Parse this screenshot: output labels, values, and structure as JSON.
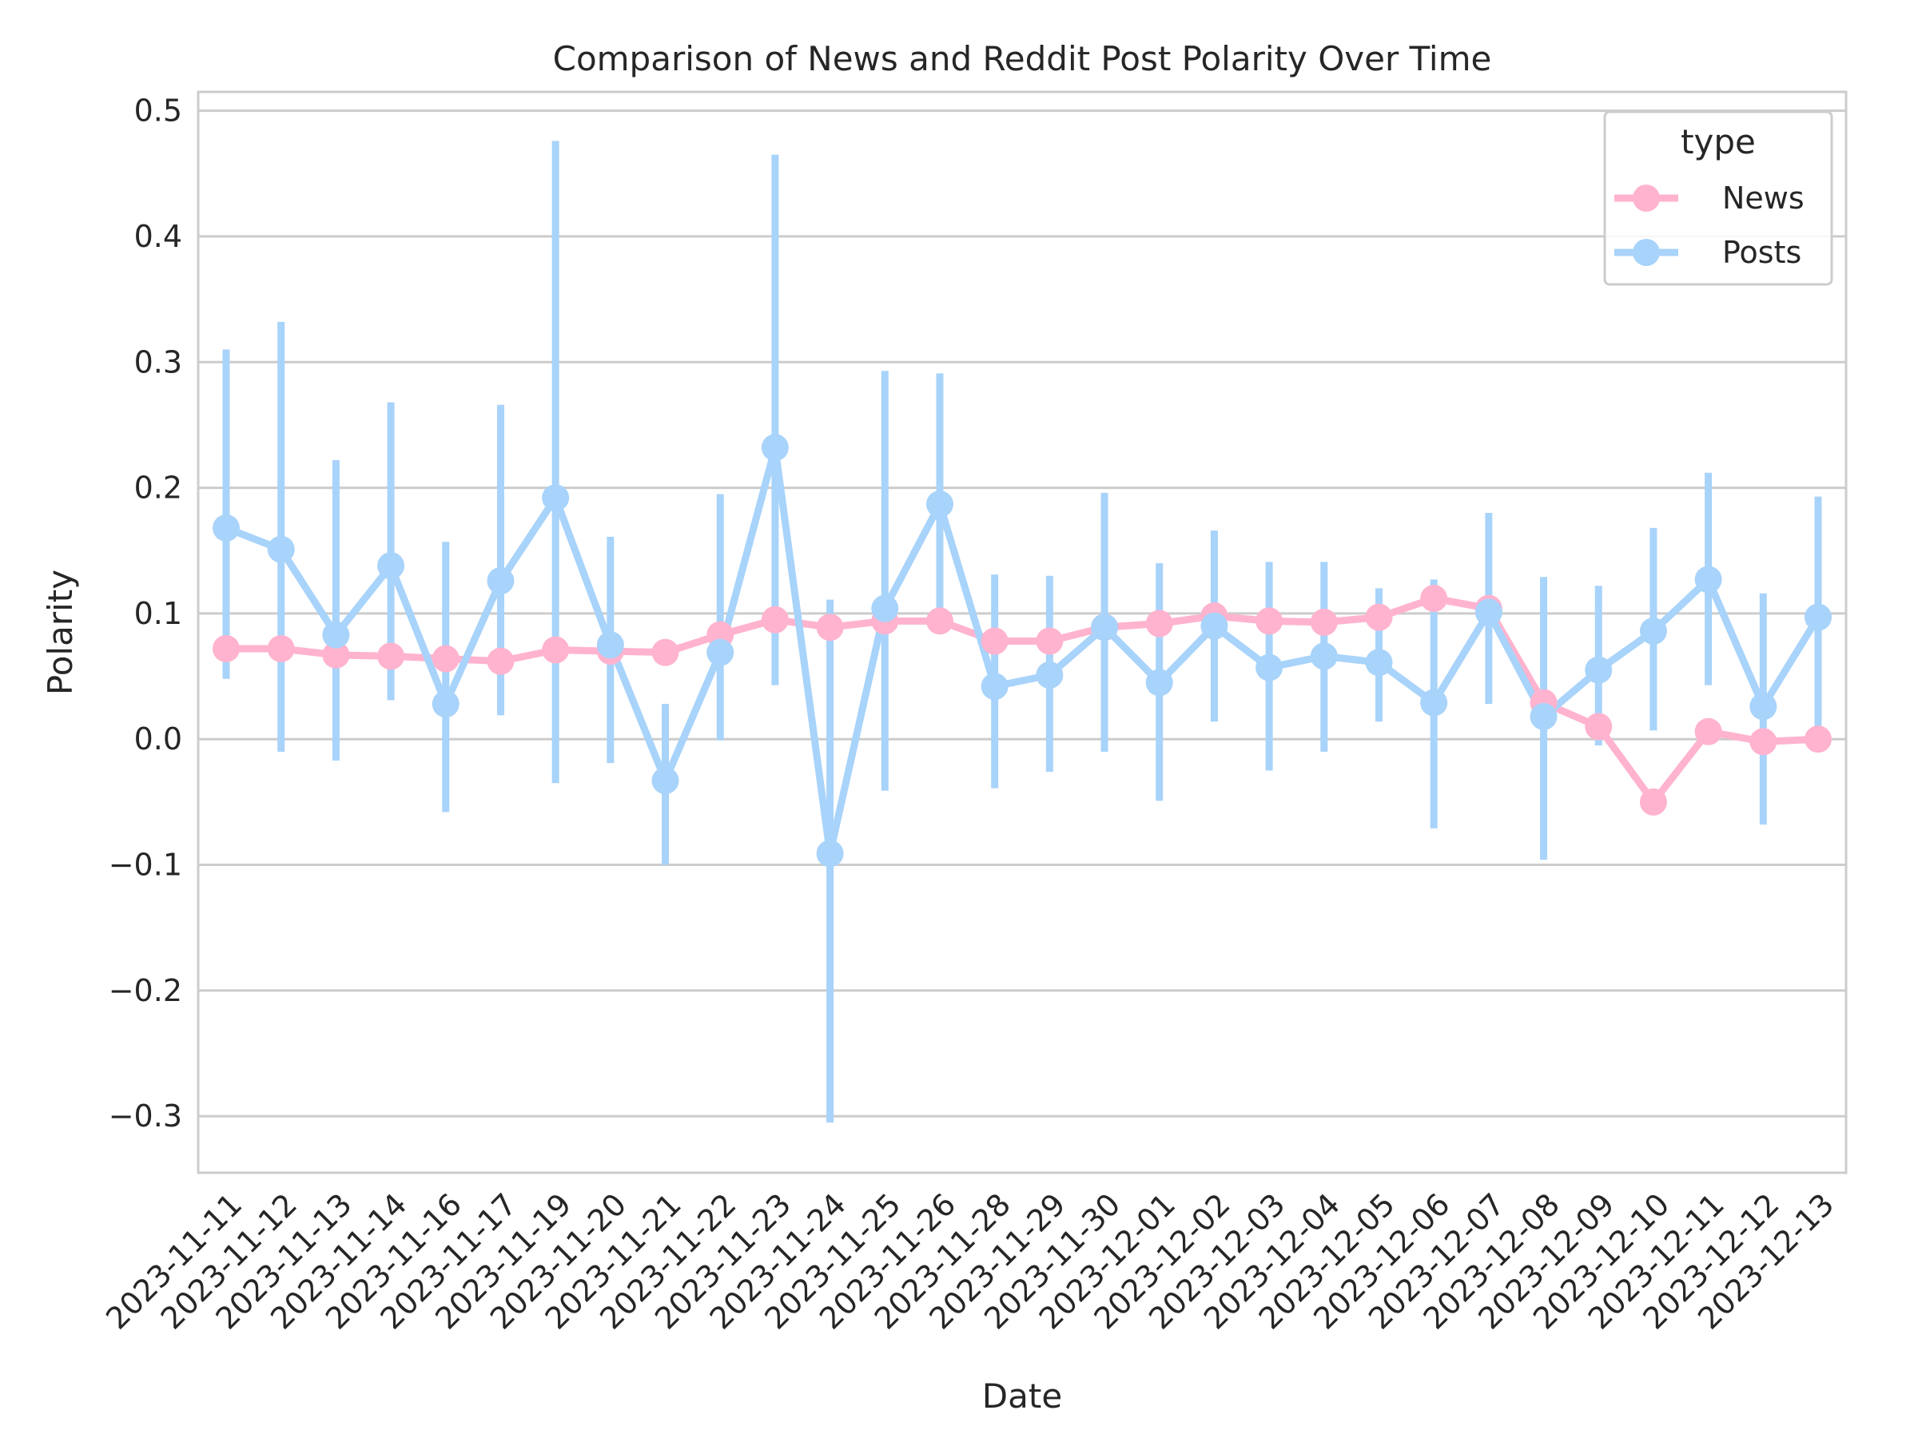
{
  "chart_data": {
    "type": "line",
    "title": "Comparison of News and Reddit Post Polarity Over Time",
    "xlabel": "Date",
    "ylabel": "Polarity",
    "ylim": [
      -0.345,
      0.515
    ],
    "yticks": [
      -0.3,
      -0.2,
      -0.1,
      0.0,
      0.1,
      0.2,
      0.3,
      0.4,
      0.5
    ],
    "ytick_labels": [
      "−0.3",
      "−0.2",
      "−0.1",
      "0.0",
      "0.1",
      "0.2",
      "0.3",
      "0.4",
      "0.5"
    ],
    "grid": true,
    "legend": {
      "title": "type",
      "position": "top-right"
    },
    "categories": [
      "2023-11-11",
      "2023-11-12",
      "2023-11-13",
      "2023-11-14",
      "2023-11-16",
      "2023-11-17",
      "2023-11-19",
      "2023-11-20",
      "2023-11-21",
      "2023-11-22",
      "2023-11-23",
      "2023-11-24",
      "2023-11-25",
      "2023-11-26",
      "2023-11-28",
      "2023-11-29",
      "2023-11-30",
      "2023-12-01",
      "2023-12-02",
      "2023-12-03",
      "2023-12-04",
      "2023-12-05",
      "2023-12-06",
      "2023-12-07",
      "2023-12-08",
      "2023-12-09",
      "2023-12-10",
      "2023-12-11",
      "2023-12-12",
      "2023-12-13"
    ],
    "series": [
      {
        "name": "News",
        "color": "#ffb3cf",
        "values": [
          0.072,
          0.072,
          0.067,
          0.066,
          0.064,
          0.062,
          0.071,
          0.07,
          0.069,
          0.083,
          0.095,
          0.089,
          0.094,
          0.094,
          0.078,
          0.078,
          0.089,
          0.092,
          0.098,
          0.094,
          0.093,
          0.097,
          0.112,
          0.104,
          0.029,
          0.01,
          -0.05,
          0.006,
          -0.002,
          0.0
        ]
      },
      {
        "name": "Posts",
        "color": "#a8d3fa",
        "values": [
          0.168,
          0.151,
          0.083,
          0.138,
          0.028,
          0.126,
          0.192,
          0.075,
          -0.033,
          0.069,
          0.232,
          -0.091,
          0.104,
          0.187,
          0.042,
          0.051,
          0.089,
          0.045,
          0.09,
          0.057,
          0.066,
          0.061,
          0.029,
          0.101,
          0.018,
          0.055,
          0.086,
          0.127,
          0.026,
          0.097
        ],
        "ci_low": [
          0.048,
          -0.01,
          -0.017,
          0.031,
          -0.058,
          0.019,
          -0.035,
          -0.019,
          -0.1,
          -0.001,
          0.043,
          -0.305,
          -0.041,
          0.088,
          -0.039,
          -0.026,
          -0.01,
          -0.049,
          0.014,
          -0.025,
          -0.01,
          0.014,
          -0.071,
          0.028,
          -0.096,
          -0.005,
          0.007,
          0.043,
          -0.068,
          0.002
        ],
        "ci_high": [
          0.31,
          0.332,
          0.222,
          0.268,
          0.157,
          0.266,
          0.476,
          0.161,
          0.028,
          0.195,
          0.465,
          0.111,
          0.293,
          0.291,
          0.131,
          0.13,
          0.196,
          0.14,
          0.166,
          0.141,
          0.141,
          0.12,
          0.127,
          0.18,
          0.129,
          0.122,
          0.168,
          0.212,
          0.116,
          0.193
        ]
      }
    ]
  }
}
